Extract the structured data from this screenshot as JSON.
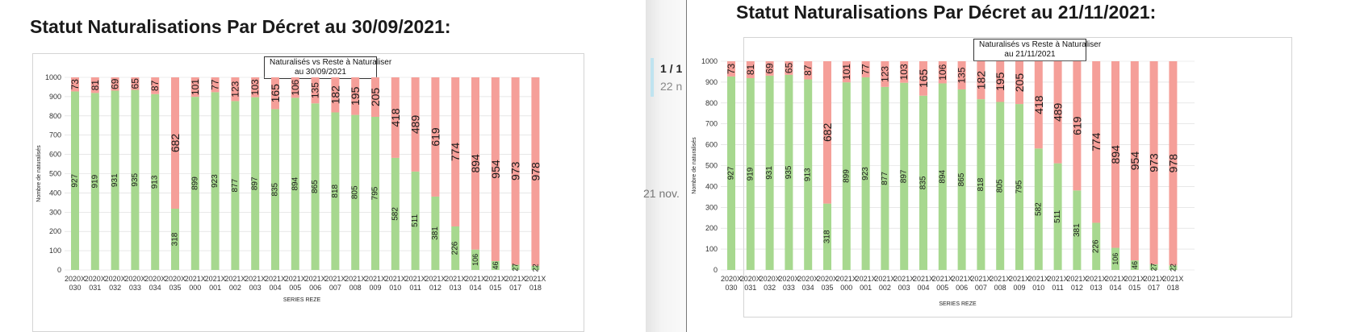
{
  "left_panel": {
    "heading": "Statut Naturalisations Par Décret au 30/09/2021:",
    "chart_title_line1": "Naturalisés vs Reste à Naturaliser",
    "chart_title_line2": "au 30/09/2021"
  },
  "right_panel": {
    "heading": "Statut Naturalisations Par Décret au 21/11/2021:",
    "chart_title_line1": "Naturalisés vs Reste à Naturaliser",
    "chart_title_line2": "au 21/11/2021"
  },
  "middle_panel": {
    "page_indicator": "1 / 1",
    "count_fragment": "22 n",
    "date_fragment": "21 nov."
  },
  "colors": {
    "naturalises": "#a7d88f",
    "reste": "#f59f99",
    "grid": "#d9d9d9"
  },
  "chart_data": [
    {
      "type": "bar",
      "stacked": true,
      "title": "Naturalisés vs Reste à Naturaliser au 30/09/2021",
      "xlabel": "SERIES REZE",
      "ylabel": "Nombre de naturalisés",
      "ylim": [
        0,
        1000
      ],
      "yticks": [
        0,
        100,
        200,
        300,
        400,
        500,
        600,
        700,
        800,
        900,
        1000
      ],
      "categories": [
        [
          "2020X",
          "030"
        ],
        [
          "2020X",
          "031"
        ],
        [
          "2020X",
          "032"
        ],
        [
          "2020X",
          "033"
        ],
        [
          "2020X",
          "034"
        ],
        [
          "2020X",
          "035"
        ],
        [
          "2021X",
          "000"
        ],
        [
          "2021X",
          "001"
        ],
        [
          "2021X",
          "002"
        ],
        [
          "2021X",
          "003"
        ],
        [
          "2021X",
          "004"
        ],
        [
          "2021X",
          "005"
        ],
        [
          "2021X",
          "006"
        ],
        [
          "2021X",
          "007"
        ],
        [
          "2021X",
          "008"
        ],
        [
          "2021X",
          "009"
        ],
        [
          "2021X",
          "010"
        ],
        [
          "2021X",
          "011"
        ],
        [
          "2021X",
          "012"
        ],
        [
          "2021X",
          "013"
        ],
        [
          "2021X",
          "014"
        ],
        [
          "2021X",
          "015"
        ],
        [
          "2021X",
          "017"
        ],
        [
          "2021X",
          "018"
        ]
      ],
      "series": [
        {
          "values": [
            927,
            919,
            931,
            935,
            913,
            318,
            899,
            923,
            877,
            897,
            835,
            894,
            865,
            818,
            805,
            795,
            582,
            511,
            381,
            226,
            106,
            46,
            27,
            22
          ]
        },
        {
          "values": [
            73,
            81,
            69,
            65,
            87,
            682,
            101,
            77,
            123,
            103,
            165,
            106,
            135,
            182,
            195,
            205,
            418,
            489,
            619,
            774,
            894,
            954,
            973,
            978
          ]
        }
      ]
    },
    {
      "type": "bar",
      "stacked": true,
      "title": "Naturalisés vs Reste à Naturaliser au 21/11/2021",
      "xlabel": "SERIES REZE",
      "ylabel": "Nombre de naturalisés",
      "ylim": [
        0,
        1000
      ],
      "yticks": [
        0,
        100,
        200,
        300,
        400,
        500,
        600,
        700,
        800,
        900,
        1000
      ],
      "categories": [
        [
          "2020X",
          "030"
        ],
        [
          "2020X",
          "031"
        ],
        [
          "2020X",
          "032"
        ],
        [
          "2020X",
          "033"
        ],
        [
          "2020X",
          "034"
        ],
        [
          "2020X",
          "035"
        ],
        [
          "2021X",
          "000"
        ],
        [
          "2021X",
          "001"
        ],
        [
          "2021X",
          "002"
        ],
        [
          "2021X",
          "003"
        ],
        [
          "2021X",
          "004"
        ],
        [
          "2021X",
          "005"
        ],
        [
          "2021X",
          "006"
        ],
        [
          "2021X",
          "007"
        ],
        [
          "2021X",
          "008"
        ],
        [
          "2021X",
          "009"
        ],
        [
          "2021X",
          "010"
        ],
        [
          "2021X",
          "011"
        ],
        [
          "2021X",
          "012"
        ],
        [
          "2021X",
          "013"
        ],
        [
          "2021X",
          "014"
        ],
        [
          "2021X",
          "015"
        ],
        [
          "2021X",
          "017"
        ],
        [
          "2021X",
          "018"
        ]
      ],
      "series": [
        {
          "values": [
            927,
            919,
            931,
            935,
            913,
            318,
            899,
            923,
            877,
            897,
            835,
            894,
            865,
            818,
            805,
            795,
            582,
            511,
            381,
            226,
            106,
            46,
            27,
            22
          ]
        },
        {
          "values": [
            73,
            81,
            69,
            65,
            87,
            682,
            101,
            77,
            123,
            103,
            165,
            106,
            135,
            182,
            195,
            205,
            418,
            489,
            619,
            774,
            894,
            954,
            973,
            978
          ]
        }
      ]
    }
  ]
}
